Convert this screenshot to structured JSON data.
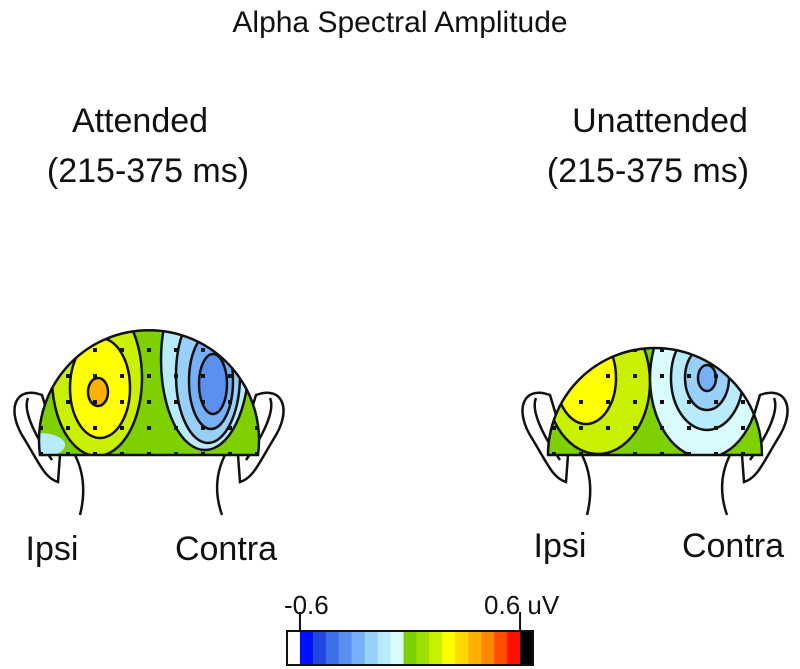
{
  "title": "Alpha Spectral Amplitude",
  "panels": [
    {
      "condition": "Attended",
      "window": "(215-375 ms)",
      "labels": [
        "Ipsi",
        "Contra"
      ]
    },
    {
      "condition": "Unattended",
      "window": "(215-375 ms)",
      "labels": [
        "Ipsi",
        "Contra"
      ]
    }
  ],
  "colorbar": {
    "lim": [
      -0.6,
      0.6
    ],
    "ticks": [
      -0.6,
      {
        "value": 0.6,
        "label": "0.6 uV"
      }
    ],
    "colors": [
      "#ffffff",
      "#0010ff",
      "#2048e0",
      "#3c70e8",
      "#5a90f0",
      "#78b0f8",
      "#98d0fa",
      "#b8ecfc",
      "#d8fcfc",
      "#7ed000",
      "#a0e000",
      "#c8f000",
      "#ffff00",
      "#ffd800",
      "#ffb000",
      "#ff8800",
      "#ff5000",
      "#ff1000",
      "#000000"
    ]
  }
}
